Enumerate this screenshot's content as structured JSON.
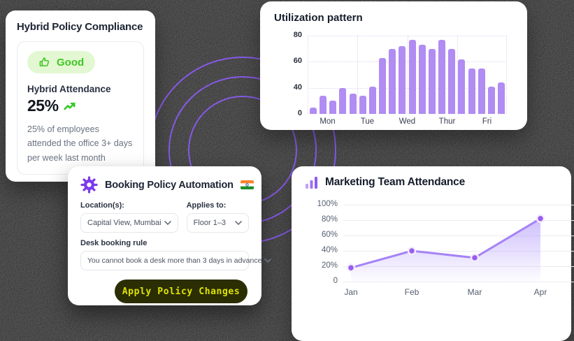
{
  "accent": {
    "purple": "#8b5cf6",
    "ring_purple": "#8a5bf0",
    "green": "#3fc723",
    "heading_navy": "#1d2434"
  },
  "compliance_card": {
    "title": "Hybrid Policy Compliance",
    "badge": {
      "label": "Good",
      "icon": "thumbs-up-icon",
      "bg": "#e3f8d2",
      "text_color": "#3fc723"
    },
    "metric_label": "Hybrid Attendance",
    "metric_value": "25%",
    "metric_trend": "up",
    "description": "25% of employees attended the office 3+ days per week last month"
  },
  "booking_card": {
    "title": "Booking Policy Automation",
    "title_icon": "gear-icon",
    "title_flag": "india-flag-icon",
    "fields": [
      {
        "label": "Location(s):",
        "value": "Capital View, Mumbai"
      },
      {
        "label": "Applies to:",
        "value": "Floor 1–3"
      },
      {
        "label": "Desk booking rule",
        "value": "You cannot book a desk more than 3 days in advance"
      }
    ],
    "button": {
      "label": "Apply Policy Changes",
      "bg": "#2b2d03",
      "text_color": "#dde300"
    }
  },
  "chart_data": [
    {
      "type": "bar",
      "title": "Utilization pattern",
      "categories": [
        "Mon",
        "Tue",
        "Wed",
        "Thur",
        "Fri"
      ],
      "bars_per_category": 4,
      "values": [
        10,
        28,
        20,
        40,
        31,
        28,
        41,
        63,
        70,
        72,
        77,
        73,
        70,
        77,
        70,
        62,
        55,
        55,
        41,
        44
      ],
      "yticks": [
        0,
        40,
        60,
        80
      ],
      "ytick_spacing": "equal",
      "ylim": [
        0,
        80
      ],
      "grid": "dotted",
      "bar_color": "#b18cf2",
      "xlabel": "",
      "ylabel": ""
    },
    {
      "type": "area",
      "title": "Marketing Team Attendance",
      "title_icon": "bar-chart-icon",
      "x": [
        "Jan",
        "Feb",
        "Mar",
        "Apr"
      ],
      "values": [
        18,
        40,
        31,
        82
      ],
      "unit": "%",
      "yticks": [
        "100%",
        "80%",
        "60%",
        "40%",
        "20%",
        "0"
      ],
      "ylim": [
        0,
        100
      ],
      "grid": "horizontal",
      "line_color": "#a583f5",
      "point_color": "#9a5cf0",
      "area_fill": "#a78bfa",
      "xlabel": "",
      "ylabel": ""
    }
  ]
}
